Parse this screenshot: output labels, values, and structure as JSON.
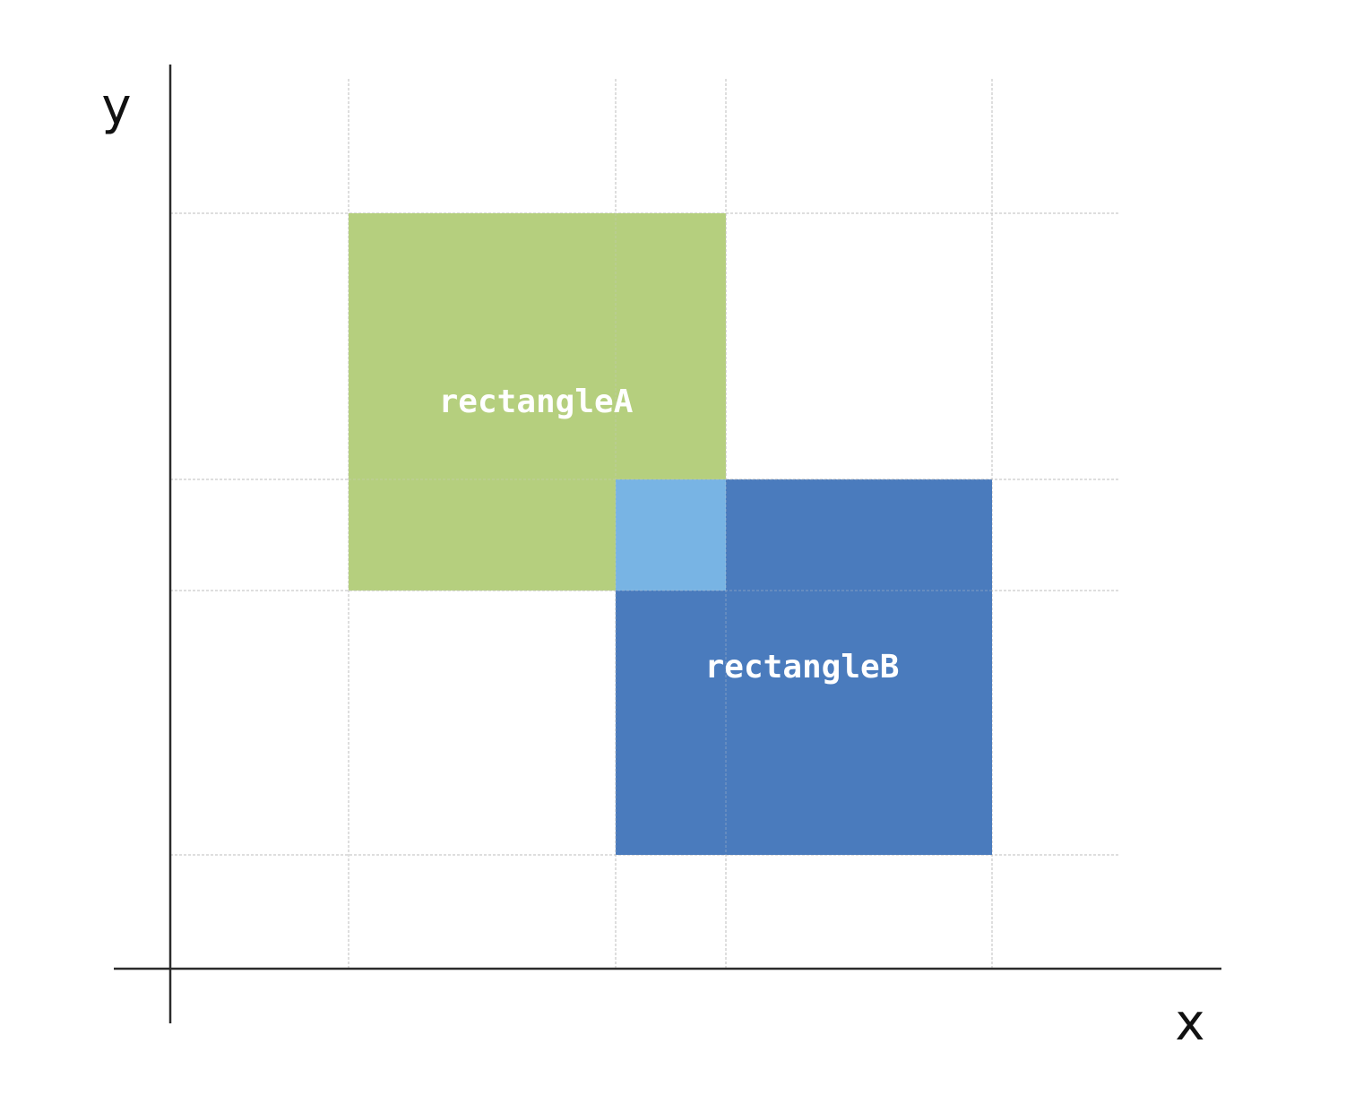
{
  "axes": {
    "x_label": "x",
    "y_label": "y"
  },
  "colors": {
    "rectangle_a": "#b5cf7e",
    "rectangle_b": "#4a7bbd",
    "overlap": "#78b4e4",
    "grid": "#c9c9c9",
    "axis": "#2b2b2b"
  },
  "rectangles": {
    "a": {
      "label": "rectangleA",
      "x": [
        1,
        3
      ],
      "y": [
        2,
        5
      ]
    },
    "b": {
      "label": "rectangleB",
      "x": [
        2,
        4
      ],
      "y": [
        1,
        3
      ]
    },
    "overlap": {
      "x": [
        2,
        3
      ],
      "y": [
        2,
        3
      ]
    }
  }
}
